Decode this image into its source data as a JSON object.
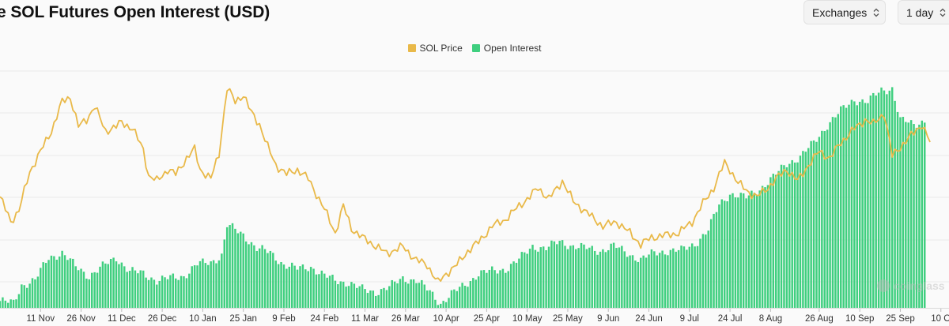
{
  "header": {
    "title": "e SOL Futures Open Interest (USD)",
    "exchanges_label": "Exchanges",
    "interval_label": "1 day"
  },
  "colors": {
    "price": "#e9b949",
    "open_interest": "#3fcf7f",
    "background": "#fafafa",
    "gridline": "#eaeaea"
  },
  "watermark": "coinglass",
  "chart_data": {
    "type": "bar",
    "title": "e SOL Futures Open Interest (USD)",
    "xlabel": "",
    "ylabel": "",
    "grid": true,
    "legend_position": "top-center",
    "legend": [
      "SOL Price",
      "Open Interest"
    ],
    "x_tick_labels": [
      "11 Nov",
      "26 Nov",
      "11 Dec",
      "26 Dec",
      "10 Jan",
      "25 Jan",
      "9 Feb",
      "24 Feb",
      "11 Mar",
      "26 Mar",
      "10 Apr",
      "25 Apr",
      "10 May",
      "25 May",
      "9 Jun",
      "24 Jun",
      "9 Jul",
      "24 Jul",
      "8 Aug",
      "26 Aug",
      "10 Sep",
      "25 Sep",
      "10 O"
    ],
    "note": "Values are relative (0-100 scale) because the value axes are not printed in the image.",
    "y_range_relative": [
      0,
      100
    ],
    "series": [
      {
        "name": "Open Interest",
        "type": "bar",
        "keypoints": [
          [
            "2024-10-27",
            3
          ],
          [
            "2024-11-01",
            2
          ],
          [
            "2024-11-04",
            10
          ],
          [
            "2024-11-09",
            12
          ],
          [
            "2024-11-14",
            22
          ],
          [
            "2024-11-19",
            24
          ],
          [
            "2024-11-24",
            18
          ],
          [
            "2024-11-29",
            14
          ],
          [
            "2024-12-04",
            18
          ],
          [
            "2024-12-09",
            22
          ],
          [
            "2024-12-14",
            16
          ],
          [
            "2024-12-19",
            15
          ],
          [
            "2024-12-24",
            12
          ],
          [
            "2024-12-29",
            13
          ],
          [
            "2025-01-03",
            14
          ],
          [
            "2025-01-08",
            19
          ],
          [
            "2025-01-13",
            20
          ],
          [
            "2025-01-17",
            23
          ],
          [
            "2025-01-19",
            36
          ],
          [
            "2025-01-22",
            34
          ],
          [
            "2025-01-25",
            32
          ],
          [
            "2025-01-30",
            26
          ],
          [
            "2025-02-04",
            24
          ],
          [
            "2025-02-09",
            19
          ],
          [
            "2025-02-14",
            17
          ],
          [
            "2025-02-19",
            18
          ],
          [
            "2025-02-24",
            14
          ],
          [
            "2025-02-28",
            12
          ],
          [
            "2025-03-05",
            11
          ],
          [
            "2025-03-10",
            8
          ],
          [
            "2025-03-15",
            7
          ],
          [
            "2025-03-20",
            9
          ],
          [
            "2025-03-25",
            13
          ],
          [
            "2025-03-30",
            12
          ],
          [
            "2025-04-04",
            7
          ],
          [
            "2025-04-08",
            2
          ],
          [
            "2025-04-12",
            6
          ],
          [
            "2025-04-17",
            10
          ],
          [
            "2025-04-22",
            15
          ],
          [
            "2025-04-27",
            16
          ],
          [
            "2025-05-02",
            17
          ],
          [
            "2025-05-07",
            21
          ],
          [
            "2025-05-12",
            27
          ],
          [
            "2025-05-17",
            26
          ],
          [
            "2025-05-22",
            29
          ],
          [
            "2025-05-27",
            27
          ],
          [
            "2025-06-01",
            26
          ],
          [
            "2025-06-06",
            25
          ],
          [
            "2025-06-11",
            27
          ],
          [
            "2025-06-16",
            24
          ],
          [
            "2025-06-21",
            21
          ],
          [
            "2025-06-26",
            24
          ],
          [
            "2025-07-01",
            25
          ],
          [
            "2025-07-06",
            25
          ],
          [
            "2025-07-11",
            28
          ],
          [
            "2025-07-16",
            34
          ],
          [
            "2025-07-20",
            45
          ],
          [
            "2025-07-24",
            50
          ],
          [
            "2025-07-30",
            48
          ],
          [
            "2025-08-04",
            52
          ],
          [
            "2025-08-09",
            57
          ],
          [
            "2025-08-14",
            63
          ],
          [
            "2025-08-19",
            66
          ],
          [
            "2025-08-24",
            72
          ],
          [
            "2025-08-29",
            80
          ],
          [
            "2025-09-03",
            86
          ],
          [
            "2025-09-08",
            91
          ],
          [
            "2025-09-13",
            90
          ],
          [
            "2025-09-18",
            95
          ],
          [
            "2025-09-22",
            96
          ],
          [
            "2025-09-25",
            82
          ],
          [
            "2025-09-30",
            80
          ],
          [
            "2025-10-04",
            82
          ]
        ]
      },
      {
        "name": "SOL Price",
        "type": "line",
        "keypoints": [
          [
            "2024-10-27",
            48
          ],
          [
            "2024-10-31",
            37
          ],
          [
            "2024-11-03",
            42
          ],
          [
            "2024-11-07",
            59
          ],
          [
            "2024-11-11",
            68
          ],
          [
            "2024-11-15",
            77
          ],
          [
            "2024-11-19",
            90
          ],
          [
            "2024-11-22",
            92
          ],
          [
            "2024-11-25",
            79
          ],
          [
            "2024-11-28",
            82
          ],
          [
            "2024-12-01",
            88
          ],
          [
            "2024-12-05",
            77
          ],
          [
            "2024-12-09",
            79
          ],
          [
            "2024-12-11",
            81
          ],
          [
            "2024-12-15",
            78
          ],
          [
            "2024-12-19",
            69
          ],
          [
            "2024-12-21",
            57
          ],
          [
            "2024-12-24",
            55
          ],
          [
            "2024-12-28",
            60
          ],
          [
            "2024-12-31",
            58
          ],
          [
            "2025-01-04",
            65
          ],
          [
            "2025-01-07",
            69
          ],
          [
            "2025-01-09",
            60
          ],
          [
            "2025-01-13",
            56
          ],
          [
            "2025-01-16",
            67
          ],
          [
            "2025-01-19",
            96
          ],
          [
            "2025-01-22",
            90
          ],
          [
            "2025-01-25",
            93
          ],
          [
            "2025-01-28",
            85
          ],
          [
            "2025-01-31",
            80
          ],
          [
            "2025-02-03",
            70
          ],
          [
            "2025-02-06",
            62
          ],
          [
            "2025-02-10",
            58
          ],
          [
            "2025-02-14",
            60
          ],
          [
            "2025-02-18",
            56
          ],
          [
            "2025-02-22",
            47
          ],
          [
            "2025-02-25",
            40
          ],
          [
            "2025-02-28",
            32
          ],
          [
            "2025-03-03",
            44
          ],
          [
            "2025-03-06",
            34
          ],
          [
            "2025-03-10",
            30
          ],
          [
            "2025-03-14",
            27
          ],
          [
            "2025-03-19",
            23
          ],
          [
            "2025-03-25",
            26
          ],
          [
            "2025-03-30",
            20
          ],
          [
            "2025-04-03",
            18
          ],
          [
            "2025-04-07",
            10
          ],
          [
            "2025-04-10",
            14
          ],
          [
            "2025-04-14",
            18
          ],
          [
            "2025-04-18",
            24
          ],
          [
            "2025-04-22",
            28
          ],
          [
            "2025-04-27",
            35
          ],
          [
            "2025-05-02",
            38
          ],
          [
            "2025-05-07",
            44
          ],
          [
            "2025-05-11",
            48
          ],
          [
            "2025-05-14",
            52
          ],
          [
            "2025-05-18",
            47
          ],
          [
            "2025-05-23",
            55
          ],
          [
            "2025-05-27",
            46
          ],
          [
            "2025-06-02",
            40
          ],
          [
            "2025-06-07",
            35
          ],
          [
            "2025-06-12",
            37
          ],
          [
            "2025-06-17",
            32
          ],
          [
            "2025-06-21",
            27
          ],
          [
            "2025-06-25",
            30
          ],
          [
            "2025-06-30",
            31
          ],
          [
            "2025-07-05",
            32
          ],
          [
            "2025-07-10",
            37
          ],
          [
            "2025-07-14",
            45
          ],
          [
            "2025-07-18",
            52
          ],
          [
            "2025-07-22",
            63
          ],
          [
            "2025-07-24",
            60
          ],
          [
            "2025-07-27",
            54
          ],
          [
            "2025-07-31",
            50
          ],
          [
            "2025-08-03",
            48
          ],
          [
            "2025-08-07",
            52
          ],
          [
            "2025-08-11",
            57
          ],
          [
            "2025-08-14",
            60
          ],
          [
            "2025-08-18",
            55
          ],
          [
            "2025-08-22",
            62
          ],
          [
            "2025-08-26",
            68
          ],
          [
            "2025-08-30",
            65
          ],
          [
            "2025-09-03",
            72
          ],
          [
            "2025-09-08",
            78
          ],
          [
            "2025-09-12",
            82
          ],
          [
            "2025-09-15",
            80
          ],
          [
            "2025-09-19",
            85
          ],
          [
            "2025-09-22",
            66
          ],
          [
            "2025-09-25",
            70
          ],
          [
            "2025-09-29",
            75
          ],
          [
            "2025-10-03",
            80
          ],
          [
            "2025-10-06",
            72
          ]
        ]
      }
    ]
  }
}
